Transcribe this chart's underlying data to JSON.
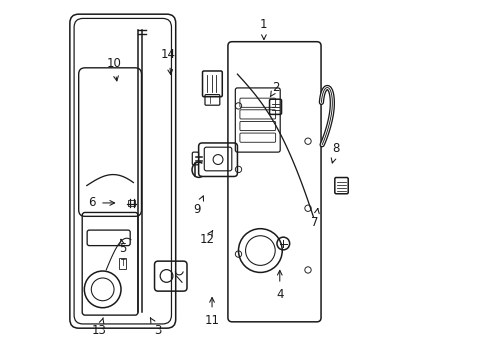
{
  "background_color": "#ffffff",
  "line_color": "#1a1a1a",
  "figsize": [
    4.89,
    3.6
  ],
  "dpi": 100,
  "label_configs": [
    [
      "13",
      [
        0.088,
        0.072
      ],
      [
        0.102,
        0.118
      ]
    ],
    [
      "3",
      [
        0.255,
        0.072
      ],
      [
        0.228,
        0.118
      ]
    ],
    [
      "5",
      [
        0.155,
        0.305
      ],
      [
        0.148,
        0.342
      ]
    ],
    [
      "6",
      [
        0.068,
        0.435
      ],
      [
        0.143,
        0.435
      ]
    ],
    [
      "11",
      [
        0.408,
        0.102
      ],
      [
        0.408,
        0.178
      ]
    ],
    [
      "12",
      [
        0.393,
        0.33
      ],
      [
        0.415,
        0.365
      ]
    ],
    [
      "9",
      [
        0.365,
        0.415
      ],
      [
        0.388,
        0.465
      ]
    ],
    [
      "4",
      [
        0.6,
        0.175
      ],
      [
        0.6,
        0.255
      ]
    ],
    [
      "7",
      [
        0.7,
        0.38
      ],
      [
        0.71,
        0.43
      ]
    ],
    [
      "8",
      [
        0.76,
        0.59
      ],
      [
        0.748,
        0.545
      ]
    ],
    [
      "10",
      [
        0.13,
        0.83
      ],
      [
        0.14,
        0.77
      ]
    ],
    [
      "14",
      [
        0.285,
        0.855
      ],
      [
        0.292,
        0.788
      ]
    ],
    [
      "1",
      [
        0.555,
        0.94
      ],
      [
        0.555,
        0.895
      ]
    ],
    [
      "2",
      [
        0.59,
        0.762
      ],
      [
        0.568,
        0.728
      ]
    ]
  ]
}
